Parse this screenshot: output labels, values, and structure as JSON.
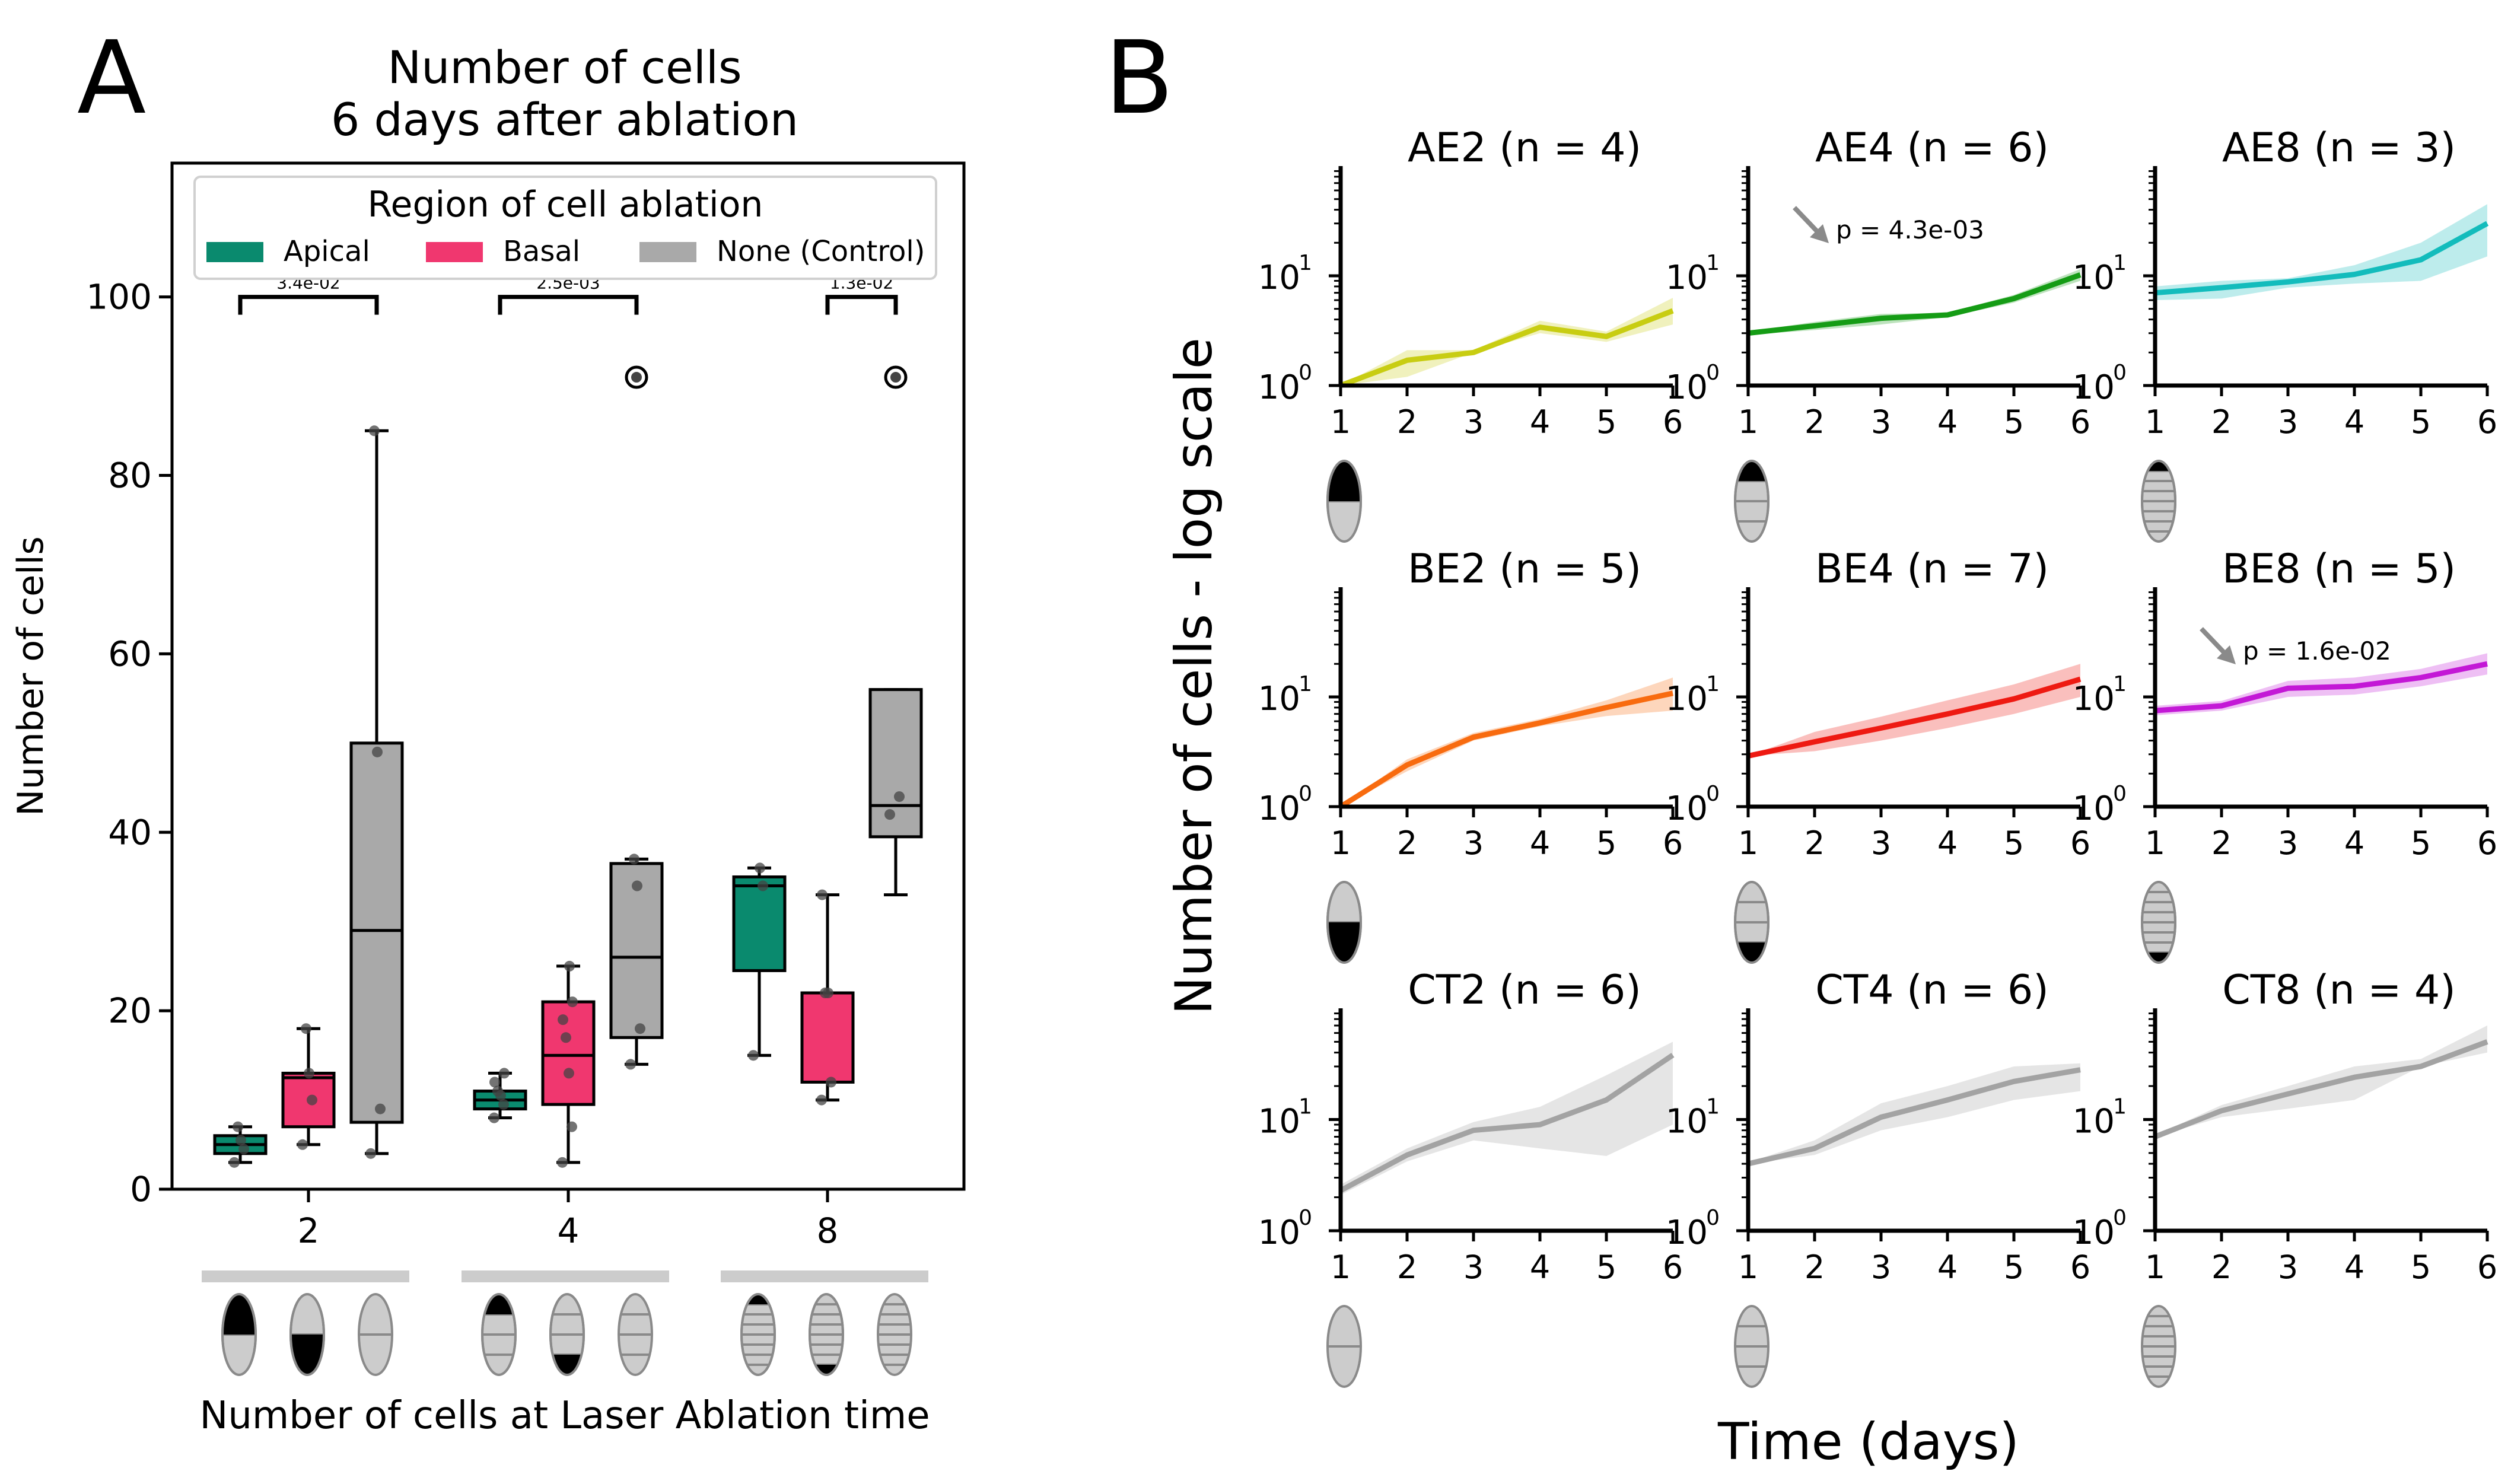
{
  "panel_labels": {
    "a": "A",
    "b": "B"
  },
  "colors": {
    "apical": "#0a8a6e",
    "basal": "#f0376f",
    "control": "#a9a9a9",
    "AE2": "#c8cd12",
    "AE4": "#159c15",
    "AE8": "#13bcbc",
    "BE2": "#f86b0f",
    "BE4": "#ee1a12",
    "BE8": "#c318d6",
    "CT": "#a3a3a3"
  },
  "chart_data": [
    {
      "type": "box",
      "title": "Number of cells\n6 days after ablation",
      "title_lines": [
        "Number of cells",
        "6 days after ablation"
      ],
      "ylabel": "Number of cells",
      "xlabel": "Number of cells at Laser Ablation time",
      "ylim": [
        0,
        115
      ],
      "yticks": [
        0,
        20,
        40,
        60,
        80,
        100
      ],
      "categories": [
        "2",
        "4",
        "8"
      ],
      "legend": {
        "title": "Region of cell ablation",
        "entries": [
          "Apical",
          "Basal",
          "None (Control)"
        ],
        "position": "top"
      },
      "series": [
        {
          "name": "Apical",
          "boxes": [
            {
              "cat": 0,
              "min": 3,
              "q1": 4,
              "median": 5,
              "q3": 6,
              "max": 7,
              "points": [
                3,
                4.5,
                5.5,
                7
              ],
              "outliers": []
            },
            {
              "cat": 1,
              "min": 8,
              "q1": 9,
              "median": 10,
              "q3": 11,
              "max": 13,
              "points": [
                8,
                9.5,
                10.5,
                11,
                12,
                13
              ],
              "outliers": []
            },
            {
              "cat": 2,
              "min": 15,
              "q1": 24.5,
              "median": 34,
              "q3": 35,
              "max": 36,
              "points": [
                15,
                34,
                36
              ],
              "outliers": []
            }
          ]
        },
        {
          "name": "Basal",
          "boxes": [
            {
              "cat": 0,
              "min": 5,
              "q1": 7,
              "median": 12.5,
              "q3": 13,
              "max": 18,
              "points": [
                5,
                10,
                13,
                18
              ],
              "outliers": []
            },
            {
              "cat": 1,
              "min": 3,
              "q1": 9.5,
              "median": 15,
              "q3": 21,
              "max": 25,
              "points": [
                3,
                7,
                13,
                17,
                19,
                21,
                25
              ],
              "outliers": []
            },
            {
              "cat": 2,
              "min": 10,
              "q1": 12,
              "median": 22,
              "q3": 22,
              "max": 33,
              "points": [
                10,
                12,
                22,
                22,
                33
              ],
              "outliers": []
            }
          ]
        },
        {
          "name": "None (Control)",
          "boxes": [
            {
              "cat": 0,
              "min": 4,
              "q1": 7.5,
              "median": 29,
              "q3": 50,
              "max": 85,
              "points": [
                4,
                9,
                49,
                85
              ],
              "outliers": []
            },
            {
              "cat": 1,
              "min": 14,
              "q1": 17,
              "median": 26,
              "q3": 36.5,
              "max": 37,
              "points": [
                14,
                18,
                34,
                37
              ],
              "outliers": [
                91
              ]
            },
            {
              "cat": 2,
              "min": 33,
              "q1": 39.5,
              "median": 43,
              "q3": 56,
              "max": 56,
              "points": [
                42,
                44
              ],
              "outliers": [
                91
              ]
            }
          ]
        }
      ],
      "annotations": [
        {
          "cat": 0,
          "text": "3.4e-02",
          "from": "Apical",
          "to": "None (Control)"
        },
        {
          "cat": 1,
          "text": "2.5e-03",
          "from": "Apical",
          "to": "None (Control)"
        },
        {
          "cat": 2,
          "text": "1.3e-02",
          "from": "Basal",
          "to": "None (Control)"
        }
      ],
      "icon_groups": [
        {
          "cat": "2",
          "icons": [
            "apical-1-of-2",
            "basal-1-of-2",
            "control-2"
          ]
        },
        {
          "cat": "4",
          "icons": [
            "apical-1-of-4",
            "basal-1-of-4",
            "control-4"
          ]
        },
        {
          "cat": "8",
          "icons": [
            "apical-1-of-8",
            "basal-1-of-8",
            "control-8"
          ]
        }
      ]
    },
    {
      "type": "line",
      "yscale": "log",
      "ylabel": "Number of cells - log scale",
      "xlabel": "Time (days)",
      "x": [
        1,
        2,
        3,
        4,
        5,
        6
      ],
      "xticks": [
        "1",
        "2",
        "3",
        "4",
        "5",
        "6"
      ],
      "ylim": [
        1,
        100
      ],
      "yticks": [
        {
          "value": 1,
          "base": "10",
          "exp": "0"
        },
        {
          "value": 10,
          "base": "10",
          "exp": "1"
        }
      ],
      "subplots": [
        {
          "title": "AE2 (n = 4)",
          "color": "AE2",
          "mean": [
            1.0,
            1.7,
            2.0,
            3.4,
            2.8,
            4.8
          ],
          "lower": [
            1.0,
            1.2,
            2.0,
            3.0,
            2.5,
            3.6
          ],
          "upper": [
            1.0,
            2.1,
            2.1,
            3.9,
            3.1,
            6.3
          ],
          "icon": "apical-1-of-2",
          "pvalue": null
        },
        {
          "title": "AE4 (n = 6)",
          "color": "AE4",
          "mean": [
            3.0,
            3.5,
            4.1,
            4.4,
            6.2,
            10.2
          ],
          "lower": [
            2.9,
            3.2,
            3.6,
            4.2,
            5.7,
            9.0
          ],
          "upper": [
            3.1,
            3.8,
            4.5,
            4.6,
            6.7,
            11.5
          ],
          "icon": "apical-1-of-4",
          "pvalue": "p = 4.3e-03"
        },
        {
          "title": "AE8 (n = 3)",
          "color": "AE8",
          "mean": [
            7.0,
            7.8,
            8.8,
            10.3,
            14.0,
            30.0
          ],
          "lower": [
            6.0,
            6.2,
            7.8,
            8.5,
            9.0,
            15.0
          ],
          "upper": [
            8.0,
            9.0,
            9.5,
            12.5,
            20.0,
            45.0
          ],
          "icon": "apical-1-of-8",
          "pvalue": null
        },
        {
          "title": "BE2 (n = 5)",
          "color": "BE2",
          "mean": [
            1.0,
            2.4,
            4.3,
            5.8,
            8.0,
            10.8
          ],
          "lower": [
            1.0,
            2.1,
            4.0,
            5.4,
            6.7,
            7.5
          ],
          "upper": [
            1.0,
            2.7,
            4.7,
            6.3,
            9.3,
            15.0
          ],
          "icon": "basal-1-of-2",
          "pvalue": null
        },
        {
          "title": "BE4 (n = 7)",
          "color": "BE4",
          "mean": [
            2.9,
            3.9,
            5.2,
            7.0,
            9.6,
            14.5
          ],
          "lower": [
            2.9,
            3.2,
            4.0,
            5.2,
            7.0,
            10.0
          ],
          "upper": [
            2.9,
            4.8,
            6.6,
            9.3,
            13.0,
            20.0
          ],
          "icon": "basal-1-of-4",
          "pvalue": null
        },
        {
          "title": "BE8 (n = 5)",
          "color": "BE8",
          "mean": [
            7.5,
            8.3,
            12.0,
            12.5,
            15.0,
            20.0
          ],
          "lower": [
            6.8,
            7.5,
            10.0,
            10.5,
            12.5,
            16.0
          ],
          "upper": [
            8.3,
            9.2,
            14.0,
            15.0,
            18.0,
            25.0
          ],
          "icon": "basal-1-of-8",
          "pvalue": "p = 1.6e-02"
        },
        {
          "title": "CT2 (n = 6)",
          "color": "CT",
          "mean": [
            2.3,
            4.8,
            8.0,
            9.0,
            15.0,
            38.0
          ],
          "lower": [
            2.1,
            4.2,
            6.5,
            5.5,
            4.7,
            9.0
          ],
          "upper": [
            2.6,
            5.5,
            9.5,
            13.0,
            25.0,
            50.0
          ],
          "icon": "control-2",
          "pvalue": null
        },
        {
          "title": "CT4 (n = 6)",
          "color": "CT",
          "mean": [
            4.0,
            5.5,
            10.5,
            15.0,
            22.0,
            28.0
          ],
          "lower": [
            4.0,
            4.8,
            8.0,
            10.5,
            15.0,
            18.0
          ],
          "upper": [
            4.1,
            6.5,
            14.0,
            20.0,
            30.0,
            32.0
          ],
          "icon": "control-4",
          "pvalue": null
        },
        {
          "title": "CT8 (n = 4)",
          "color": "CT",
          "mean": [
            7.0,
            12.0,
            17.0,
            24.0,
            30.0,
            50.0
          ],
          "lower": [
            7.0,
            10.5,
            12.5,
            15.0,
            30.0,
            40.0
          ],
          "upper": [
            7.2,
            13.5,
            20.0,
            30.0,
            35.0,
            70.0
          ],
          "icon": "control-8",
          "pvalue": null
        }
      ]
    }
  ]
}
